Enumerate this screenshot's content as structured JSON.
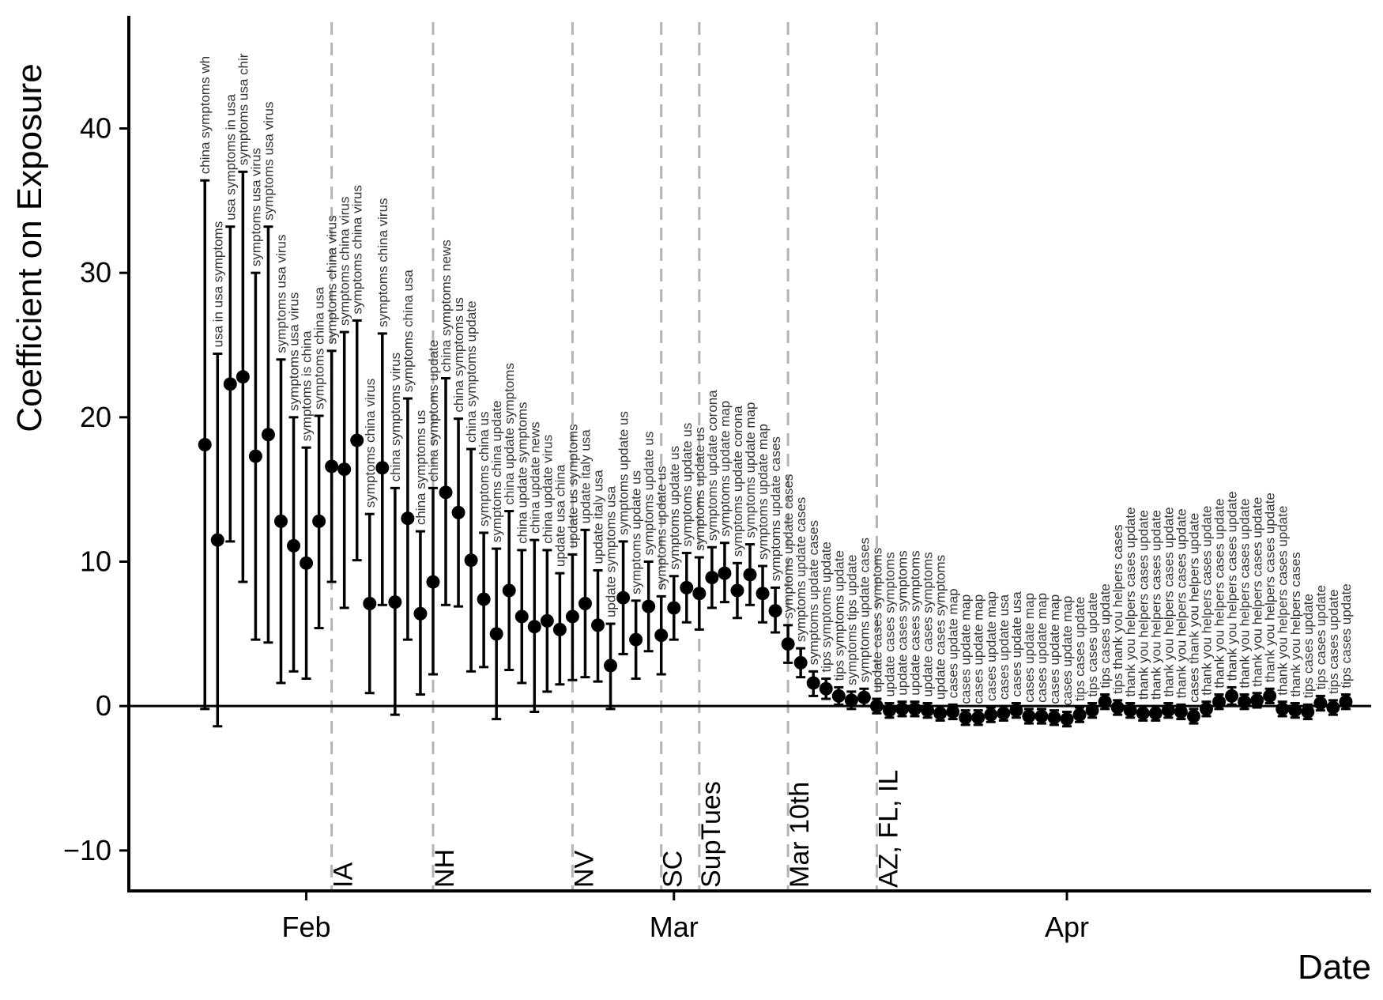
{
  "chart_data": {
    "type": "scatter",
    "title": "",
    "xlabel": "Date",
    "ylabel": "Coefficient on Exposure",
    "xlim": [
      "2020-01-18",
      "2020-04-25"
    ],
    "ylim": [
      -12.8,
      47.8
    ],
    "x_ticks": [
      {
        "date": "2020-02-01",
        "label": "Feb"
      },
      {
        "date": "2020-03-01",
        "label": "Mar"
      },
      {
        "date": "2020-04-01",
        "label": "Apr"
      }
    ],
    "y_ticks": [
      {
        "value": 40,
        "label": "40"
      },
      {
        "value": 30,
        "label": "30"
      },
      {
        "value": 20,
        "label": "20"
      },
      {
        "value": 10,
        "label": "10"
      },
      {
        "value": 0,
        "label": "0"
      },
      {
        "value": -10,
        "label": "−10"
      }
    ],
    "reference_line_y": 0,
    "events": [
      {
        "date": "2020-02-03",
        "label": "IA"
      },
      {
        "date": "2020-02-11",
        "label": "NH"
      },
      {
        "date": "2020-02-22",
        "label": "NV"
      },
      {
        "date": "2020-02-29",
        "label": "SC"
      },
      {
        "date": "2020-03-03",
        "label": "SupTues"
      },
      {
        "date": "2020-03-10",
        "label": "Mar 10th"
      },
      {
        "date": "2020-03-17",
        "label": "AZ, FL, IL"
      }
    ],
    "points": [
      {
        "date": "2020-01-24",
        "value": 18.1,
        "low": -0.2,
        "high": 36.4,
        "terms": "china symptoms wh"
      },
      {
        "date": "2020-01-25",
        "value": 11.5,
        "low": -1.4,
        "high": 24.4,
        "terms": "usa in usa symptoms"
      },
      {
        "date": "2020-01-26",
        "value": 22.3,
        "low": 11.4,
        "high": 33.2,
        "terms": "usa symptoms in usa"
      },
      {
        "date": "2020-01-27",
        "value": 22.8,
        "low": 8.6,
        "high": 37.0,
        "terms": "symptoms usa chir"
      },
      {
        "date": "2020-01-28",
        "value": 17.3,
        "low": 4.6,
        "high": 30.0,
        "terms": "symptoms usa virus"
      },
      {
        "date": "2020-01-29",
        "value": 18.8,
        "low": 4.4,
        "high": 33.2,
        "terms": "symptoms usa virus"
      },
      {
        "date": "2020-01-30",
        "value": 12.8,
        "low": 1.6,
        "high": 24.0,
        "terms": "symptoms usa virus"
      },
      {
        "date": "2020-01-31",
        "value": 11.1,
        "low": 2.4,
        "high": 20.0,
        "terms": "symptoms usa virus"
      },
      {
        "date": "2020-02-01",
        "value": 9.9,
        "low": 1.9,
        "high": 17.9,
        "terms": "symptoms is china"
      },
      {
        "date": "2020-02-02",
        "value": 12.8,
        "low": 5.4,
        "high": 20.1,
        "terms": "symptoms china usa"
      },
      {
        "date": "2020-02-03",
        "value": 16.6,
        "low": 8.6,
        "high": 24.6,
        "terms": "symptoms china virus"
      },
      {
        "date": "2020-02-04",
        "value": 16.4,
        "low": 6.8,
        "high": 25.9,
        "terms": "symptoms china virus"
      },
      {
        "date": "2020-02-05",
        "value": 18.4,
        "low": 10.1,
        "high": 26.7,
        "terms": "symptoms china virus"
      },
      {
        "date": "2020-02-06",
        "value": 7.1,
        "low": 0.9,
        "high": 13.3,
        "terms": "symptoms china virus"
      },
      {
        "date": "2020-02-07",
        "value": 16.5,
        "low": 7.0,
        "high": 25.8,
        "terms": "symptoms china virus"
      },
      {
        "date": "2020-02-08",
        "value": 7.2,
        "low": -0.6,
        "high": 15.1,
        "terms": "china symptoms virus"
      },
      {
        "date": "2020-02-09",
        "value": 13.0,
        "low": 4.6,
        "high": 21.3,
        "terms": "symptoms china usa"
      },
      {
        "date": "2020-02-10",
        "value": 6.4,
        "low": 0.8,
        "high": 12.1,
        "terms": "china symptoms us"
      },
      {
        "date": "2020-02-11",
        "value": 8.6,
        "low": 2.2,
        "high": 15.1,
        "terms": "china symptoms update"
      },
      {
        "date": "2020-02-12",
        "value": 14.8,
        "low": 7.0,
        "high": 22.7,
        "terms": "china symptoms news"
      },
      {
        "date": "2020-02-13",
        "value": 13.4,
        "low": 6.9,
        "high": 19.9,
        "terms": "china symptoms us"
      },
      {
        "date": "2020-02-14",
        "value": 10.1,
        "low": 2.4,
        "high": 17.8,
        "terms": "china symptoms update"
      },
      {
        "date": "2020-02-15",
        "value": 7.4,
        "low": 2.7,
        "high": 12.0,
        "terms": "symptoms china us"
      },
      {
        "date": "2020-02-16",
        "value": 5.0,
        "low": -0.9,
        "high": 10.9,
        "terms": "symptoms china update"
      },
      {
        "date": "2020-02-17",
        "value": 8.0,
        "low": 2.5,
        "high": 13.5,
        "terms": "china update symptoms"
      },
      {
        "date": "2020-02-18",
        "value": 6.2,
        "low": 1.6,
        "high": 10.8,
        "terms": "china update symptoms"
      },
      {
        "date": "2020-02-19",
        "value": 5.5,
        "low": -0.4,
        "high": 11.5,
        "terms": "china update news"
      },
      {
        "date": "2020-02-20",
        "value": 5.9,
        "low": 1.0,
        "high": 10.8,
        "terms": "china update virus"
      },
      {
        "date": "2020-02-21",
        "value": 5.3,
        "low": 1.5,
        "high": 9.2,
        "terms": "update usa china"
      },
      {
        "date": "2020-02-22",
        "value": 6.2,
        "low": 1.8,
        "high": 10.5,
        "terms": "update us symptoms"
      },
      {
        "date": "2020-02-23",
        "value": 7.1,
        "low": 2.0,
        "high": 12.2,
        "terms": "update italy usa"
      },
      {
        "date": "2020-02-24",
        "value": 5.6,
        "low": 1.7,
        "high": 9.4,
        "terms": "update italy usa"
      },
      {
        "date": "2020-02-25",
        "value": 2.8,
        "low": -0.2,
        "high": 5.7,
        "terms": "update symptoms usa"
      },
      {
        "date": "2020-02-26",
        "value": 7.5,
        "low": 3.6,
        "high": 11.4,
        "terms": "symptoms update us"
      },
      {
        "date": "2020-02-27",
        "value": 4.6,
        "low": 1.9,
        "high": 7.3,
        "terms": "symptoms update us"
      },
      {
        "date": "2020-02-28",
        "value": 6.9,
        "low": 3.8,
        "high": 10.0,
        "terms": "symptoms update us"
      },
      {
        "date": "2020-02-29",
        "value": 4.9,
        "low": 2.2,
        "high": 7.6,
        "terms": "symptoms update us"
      },
      {
        "date": "2020-03-01",
        "value": 6.8,
        "low": 4.6,
        "high": 9.0,
        "terms": "symptoms update us"
      },
      {
        "date": "2020-03-02",
        "value": 8.2,
        "low": 5.8,
        "high": 10.6,
        "terms": "symptoms update us"
      },
      {
        "date": "2020-03-03",
        "value": 7.8,
        "low": 5.3,
        "high": 10.3,
        "terms": "symptoms update us"
      },
      {
        "date": "2020-03-04",
        "value": 8.9,
        "low": 6.8,
        "high": 11.0,
        "terms": "symptoms update corona"
      },
      {
        "date": "2020-03-05",
        "value": 9.2,
        "low": 7.2,
        "high": 11.3,
        "terms": "symptoms update map"
      },
      {
        "date": "2020-03-06",
        "value": 8.0,
        "low": 6.1,
        "high": 9.9,
        "terms": "symptoms update corona"
      },
      {
        "date": "2020-03-07",
        "value": 9.1,
        "low": 7.0,
        "high": 11.2,
        "terms": "symptoms update map"
      },
      {
        "date": "2020-03-08",
        "value": 7.8,
        "low": 5.8,
        "high": 9.7,
        "terms": "symptoms update map"
      },
      {
        "date": "2020-03-09",
        "value": 6.6,
        "low": 5.1,
        "high": 8.2,
        "terms": "symptoms update cases"
      },
      {
        "date": "2020-03-10",
        "value": 4.3,
        "low": 3.0,
        "high": 5.6,
        "terms": "symptoms update cases"
      },
      {
        "date": "2020-03-11",
        "value": 3.0,
        "low": 2.0,
        "high": 4.0,
        "terms": "symptoms update cases"
      },
      {
        "date": "2020-03-12",
        "value": 1.6,
        "low": 0.7,
        "high": 2.4,
        "terms": "symptoms update cases"
      },
      {
        "date": "2020-03-13",
        "value": 1.2,
        "low": 0.5,
        "high": 1.9,
        "terms": "tips symptoms update"
      },
      {
        "date": "2020-03-14",
        "value": 0.7,
        "low": 0.1,
        "high": 1.3,
        "terms": "tips symptoms update"
      },
      {
        "date": "2020-03-15",
        "value": 0.4,
        "low": -0.2,
        "high": 1.0,
        "terms": "symptoms tips update"
      },
      {
        "date": "2020-03-16",
        "value": 0.6,
        "low": 0.0,
        "high": 1.2,
        "terms": "symptoms update cases"
      },
      {
        "date": "2020-03-17",
        "value": 0.0,
        "low": -0.5,
        "high": 0.5,
        "terms": "update cases symptoms"
      },
      {
        "date": "2020-03-18",
        "value": -0.3,
        "low": -0.8,
        "high": 0.2,
        "terms": "update cases symptoms"
      },
      {
        "date": "2020-03-19",
        "value": -0.2,
        "low": -0.7,
        "high": 0.3,
        "terms": "update cases symptoms"
      },
      {
        "date": "2020-03-20",
        "value": -0.2,
        "low": -0.7,
        "high": 0.3,
        "terms": "update cases symptoms"
      },
      {
        "date": "2020-03-21",
        "value": -0.3,
        "low": -0.8,
        "high": 0.2,
        "terms": "update cases symptoms"
      },
      {
        "date": "2020-03-22",
        "value": -0.5,
        "low": -1.0,
        "high": 0.0,
        "terms": "update cases symptoms"
      },
      {
        "date": "2020-03-23",
        "value": -0.4,
        "low": -0.9,
        "high": 0.1,
        "terms": "cases update map"
      },
      {
        "date": "2020-03-24",
        "value": -0.8,
        "low": -1.3,
        "high": -0.3,
        "terms": "cases update map"
      },
      {
        "date": "2020-03-25",
        "value": -0.8,
        "low": -1.3,
        "high": -0.3,
        "terms": "cases update map"
      },
      {
        "date": "2020-03-26",
        "value": -0.6,
        "low": -1.1,
        "high": -0.1,
        "terms": "cases update map"
      },
      {
        "date": "2020-03-27",
        "value": -0.5,
        "low": -1.0,
        "high": 0.0,
        "terms": "cases update usa"
      },
      {
        "date": "2020-03-28",
        "value": -0.3,
        "low": -0.8,
        "high": 0.2,
        "terms": "cases update usa"
      },
      {
        "date": "2020-03-29",
        "value": -0.7,
        "low": -1.2,
        "high": -0.2,
        "terms": "cases update map"
      },
      {
        "date": "2020-03-30",
        "value": -0.7,
        "low": -1.2,
        "high": -0.2,
        "terms": "cases update map"
      },
      {
        "date": "2020-03-31",
        "value": -0.8,
        "low": -1.3,
        "high": -0.3,
        "terms": "cases update map"
      },
      {
        "date": "2020-04-01",
        "value": -0.9,
        "low": -1.4,
        "high": -0.4,
        "terms": "cases update map"
      },
      {
        "date": "2020-04-02",
        "value": -0.6,
        "low": -1.1,
        "high": -0.1,
        "terms": "tips cases update"
      },
      {
        "date": "2020-04-03",
        "value": -0.3,
        "low": -0.8,
        "high": 0.2,
        "terms": "tips cases update"
      },
      {
        "date": "2020-04-04",
        "value": 0.3,
        "low": -0.2,
        "high": 0.8,
        "terms": "tips cases update"
      },
      {
        "date": "2020-04-05",
        "value": -0.1,
        "low": -0.6,
        "high": 0.4,
        "terms": "tips thank you  helpers cases"
      },
      {
        "date": "2020-04-06",
        "value": -0.3,
        "low": -0.8,
        "high": 0.2,
        "terms": "thank you  helpers cases update"
      },
      {
        "date": "2020-04-07",
        "value": -0.5,
        "low": -1.0,
        "high": 0.0,
        "terms": "thank you  helpers cases update"
      },
      {
        "date": "2020-04-08",
        "value": -0.5,
        "low": -1.0,
        "high": 0.0,
        "terms": "thank you  helpers cases update"
      },
      {
        "date": "2020-04-09",
        "value": -0.3,
        "low": -0.8,
        "high": 0.2,
        "terms": "thank you  helpers cases update"
      },
      {
        "date": "2020-04-10",
        "value": -0.4,
        "low": -0.9,
        "high": 0.1,
        "terms": "thank you  helpers cases update"
      },
      {
        "date": "2020-04-11",
        "value": -0.7,
        "low": -1.2,
        "high": -0.2,
        "terms": "cases thank you  helpers update"
      },
      {
        "date": "2020-04-12",
        "value": -0.2,
        "low": -0.7,
        "high": 0.3,
        "terms": "thank you  helpers cases update"
      },
      {
        "date": "2020-04-13",
        "value": 0.3,
        "low": -0.2,
        "high": 0.8,
        "terms": "thank you  helpers cases update"
      },
      {
        "date": "2020-04-14",
        "value": 0.7,
        "low": 0.1,
        "high": 1.3,
        "terms": "thank you  helpers cases update"
      },
      {
        "date": "2020-04-15",
        "value": 0.3,
        "low": -0.2,
        "high": 0.8,
        "terms": "thank you  helpers cases update"
      },
      {
        "date": "2020-04-16",
        "value": 0.4,
        "low": -0.1,
        "high": 0.9,
        "terms": "thank you  helpers cases update"
      },
      {
        "date": "2020-04-17",
        "value": 0.7,
        "low": 0.2,
        "high": 1.2,
        "terms": "thank you  helpers cases update"
      },
      {
        "date": "2020-04-18",
        "value": -0.2,
        "low": -0.7,
        "high": 0.3,
        "terms": "thank you  helpers cases update"
      },
      {
        "date": "2020-04-19",
        "value": -0.3,
        "low": -0.8,
        "high": 0.2,
        "terms": "thank you  helpers cases"
      },
      {
        "date": "2020-04-20",
        "value": -0.4,
        "low": -0.9,
        "high": 0.1,
        "terms": "tips cases update"
      },
      {
        "date": "2020-04-21",
        "value": 0.2,
        "low": -0.3,
        "high": 0.7,
        "terms": "tips cases update"
      },
      {
        "date": "2020-04-22",
        "value": -0.1,
        "low": -0.6,
        "high": 0.4,
        "terms": "tips cases update"
      },
      {
        "date": "2020-04-23",
        "value": 0.3,
        "low": -0.2,
        "high": 0.8,
        "terms": "tips cases update"
      }
    ],
    "grid": false,
    "legend": "none"
  }
}
